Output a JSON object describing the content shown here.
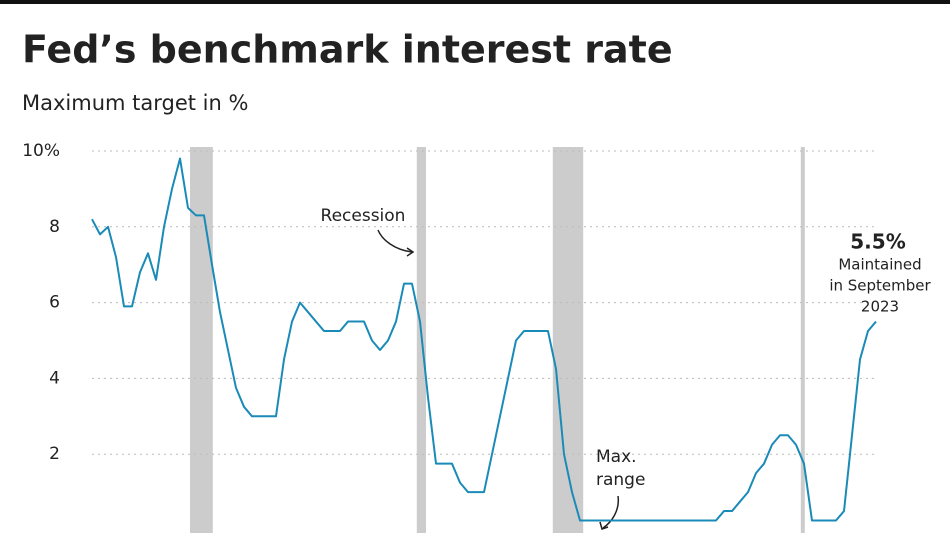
{
  "chart_data": {
    "type": "line",
    "title": "Fed’s benchmark interest rate",
    "subtitle": "Maximum target in %",
    "series": [
      {
        "color": "#1a8bb8",
        "values": [
          8.2,
          7.8,
          8.0,
          7.2,
          5.9,
          5.9,
          6.8,
          7.3,
          6.6,
          8.0,
          9.0,
          9.8,
          8.5,
          8.3,
          8.3,
          7.0,
          5.75,
          4.75,
          3.75,
          3.25,
          3.0,
          3.0,
          3.0,
          3.0,
          4.5,
          5.5,
          6.0,
          5.75,
          5.5,
          5.25,
          5.25,
          5.25,
          5.5,
          5.5,
          5.5,
          5.0,
          4.75,
          5.0,
          5.5,
          6.5,
          6.5,
          5.5,
          3.5,
          1.75,
          1.75,
          1.75,
          1.25,
          1.0,
          1.0,
          1.0,
          2.0,
          3.0,
          4.0,
          5.0,
          5.25,
          5.25,
          5.25,
          5.25,
          4.25,
          2.0,
          1.0,
          0.25,
          0.25,
          0.25,
          0.25,
          0.25,
          0.25,
          0.25,
          0.25,
          0.25,
          0.25,
          0.25,
          0.25,
          0.25,
          0.25,
          0.25,
          0.25,
          0.25,
          0.25,
          0.5,
          0.5,
          0.75,
          1.0,
          1.5,
          1.75,
          2.25,
          2.5,
          2.5,
          2.25,
          1.75,
          0.25,
          0.25,
          0.25,
          0.25,
          0.5,
          2.5,
          4.5,
          5.25,
          5.5
        ]
      }
    ],
    "recessions": [
      [
        12.25,
        15.1
      ],
      [
        40.6,
        41.75
      ],
      [
        57.6,
        61.4
      ],
      [
        88.6,
        89.1
      ]
    ],
    "recession_color": "#cccccc",
    "ylim": [
      0,
      10
    ],
    "yticks": [
      {
        "value": 10,
        "label": "10%"
      },
      8,
      6,
      4,
      2
    ],
    "grid": true,
    "annotations": {
      "recession": "Recession",
      "max_range": [
        "Max.",
        "range"
      ],
      "last_value": "5.5%",
      "last_note": [
        "Maintained",
        "in September",
        "2023"
      ]
    }
  }
}
